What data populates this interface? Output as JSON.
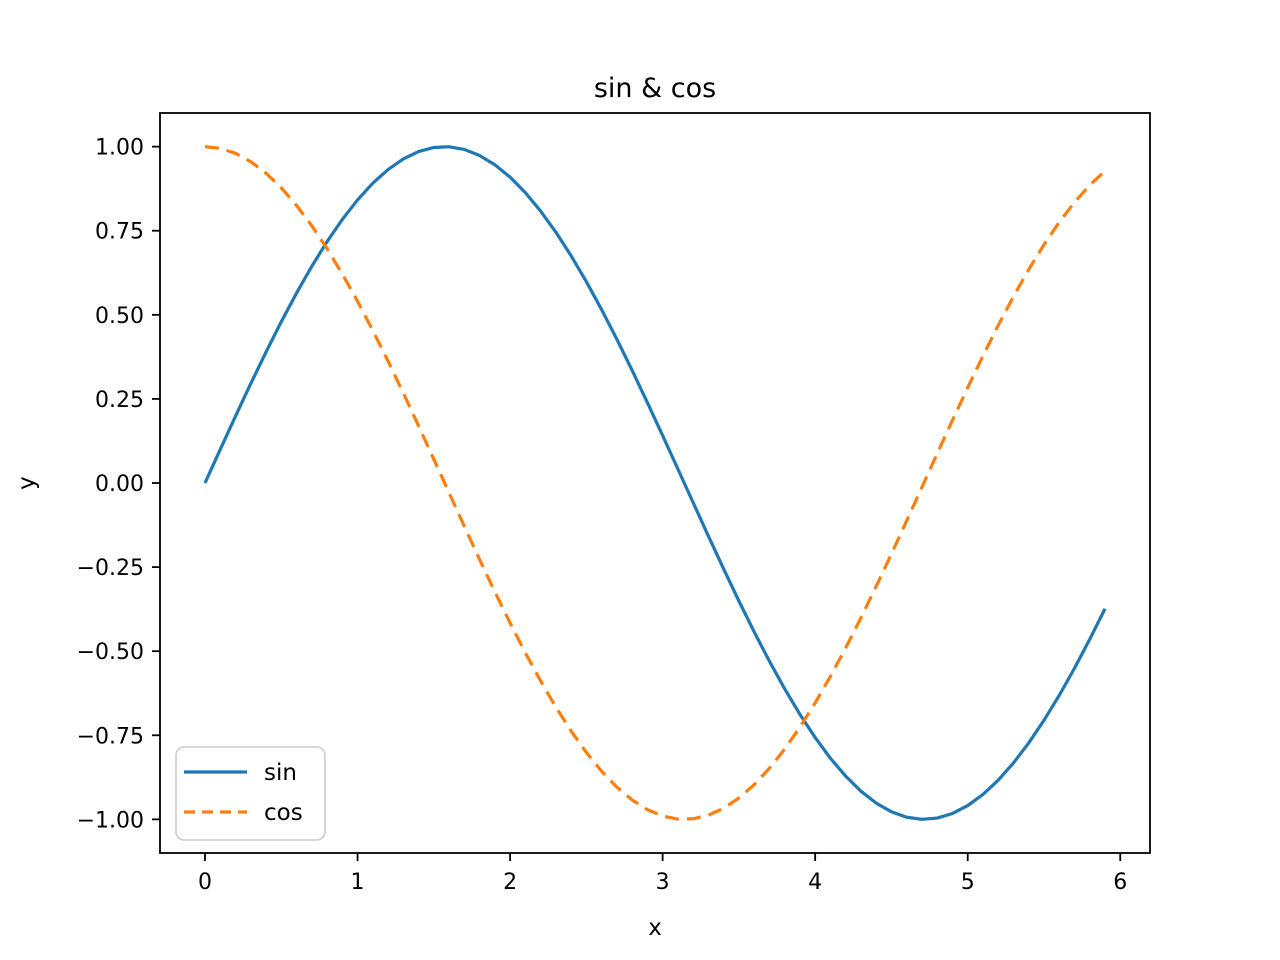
{
  "figure": {
    "background": "#ffffff",
    "axes_facecolor": "#ffffff",
    "spine_color": "#000000",
    "text_color": "#000000"
  },
  "chart_data": {
    "type": "line",
    "title": "sin & cos",
    "xlabel": "x",
    "ylabel": "y",
    "grid": false,
    "xlim": [
      -0.295,
      6.195
    ],
    "ylim": [
      -1.1,
      1.1
    ],
    "xticks": [
      0,
      1,
      2,
      3,
      4,
      5,
      6
    ],
    "yticks": [
      -1.0,
      -0.75,
      -0.5,
      -0.25,
      0.0,
      0.25,
      0.5,
      0.75,
      1.0
    ],
    "legend": {
      "position": "lower left",
      "entries": [
        {
          "label": "sin",
          "color": "#1f77b4",
          "style": "solid"
        },
        {
          "label": "cos",
          "color": "#ff7f0e",
          "style": "dashed"
        }
      ]
    },
    "x": [
      0,
      0.1,
      0.2,
      0.3,
      0.4,
      0.5,
      0.6,
      0.7,
      0.8,
      0.9,
      1,
      1.1,
      1.2,
      1.3,
      1.4,
      1.5,
      1.6,
      1.7,
      1.8,
      1.9,
      2,
      2.1,
      2.2,
      2.3,
      2.4,
      2.5,
      2.6,
      2.7,
      2.8,
      2.9,
      3,
      3.1,
      3.2,
      3.3,
      3.4,
      3.5,
      3.6,
      3.7,
      3.8,
      3.9,
      4,
      4.1,
      4.2,
      4.3,
      4.4,
      4.5,
      4.6,
      4.7,
      4.8,
      4.9,
      5,
      5.1,
      5.2,
      5.3,
      5.4,
      5.5,
      5.6,
      5.7,
      5.8,
      5.9
    ],
    "series": [
      {
        "name": "sin",
        "color": "#1f77b4",
        "style": "solid",
        "values": [
          0,
          0.0998,
          0.1987,
          0.2955,
          0.3894,
          0.4794,
          0.5646,
          0.6442,
          0.7174,
          0.7833,
          0.8415,
          0.8912,
          0.932,
          0.9636,
          0.9854,
          0.9975,
          0.9996,
          0.9917,
          0.9738,
          0.9463,
          0.9093,
          0.8632,
          0.8085,
          0.7457,
          0.6755,
          0.5985,
          0.5155,
          0.4274,
          0.335,
          0.2392,
          0.1411,
          0.0416,
          -0.0584,
          -0.1577,
          -0.2555,
          -0.3508,
          -0.4425,
          -0.5298,
          -0.6119,
          -0.6878,
          -0.7568,
          -0.8183,
          -0.8716,
          -0.9162,
          -0.9516,
          -0.9775,
          -0.9937,
          -0.9999,
          -0.9962,
          -0.9825,
          -0.9589,
          -0.9258,
          -0.8835,
          -0.8323,
          -0.7728,
          -0.7055,
          -0.6313,
          -0.5507,
          -0.4646,
          -0.3739
        ]
      },
      {
        "name": "cos",
        "color": "#ff7f0e",
        "style": "dashed",
        "values": [
          1,
          0.995,
          0.9801,
          0.9553,
          0.9211,
          0.8776,
          0.8253,
          0.7648,
          0.6967,
          0.6216,
          0.5403,
          0.4536,
          0.3624,
          0.2675,
          0.17,
          0.0707,
          -0.0292,
          -0.1288,
          -0.2272,
          -0.3233,
          -0.4161,
          -0.5048,
          -0.5885,
          -0.6663,
          -0.7374,
          -0.8011,
          -0.8569,
          -0.9041,
          -0.9422,
          -0.971,
          -0.99,
          -0.9991,
          -0.9983,
          -0.9875,
          -0.9668,
          -0.9365,
          -0.8968,
          -0.8481,
          -0.791,
          -0.7259,
          -0.6536,
          -0.5748,
          -0.4903,
          -0.4008,
          -0.3073,
          -0.2108,
          -0.1122,
          -0.0124,
          0.0875,
          0.1865,
          0.2837,
          0.378,
          0.4685,
          0.5544,
          0.6347,
          0.7087,
          0.7756,
          0.8347,
          0.8855,
          0.9275
        ]
      }
    ]
  }
}
